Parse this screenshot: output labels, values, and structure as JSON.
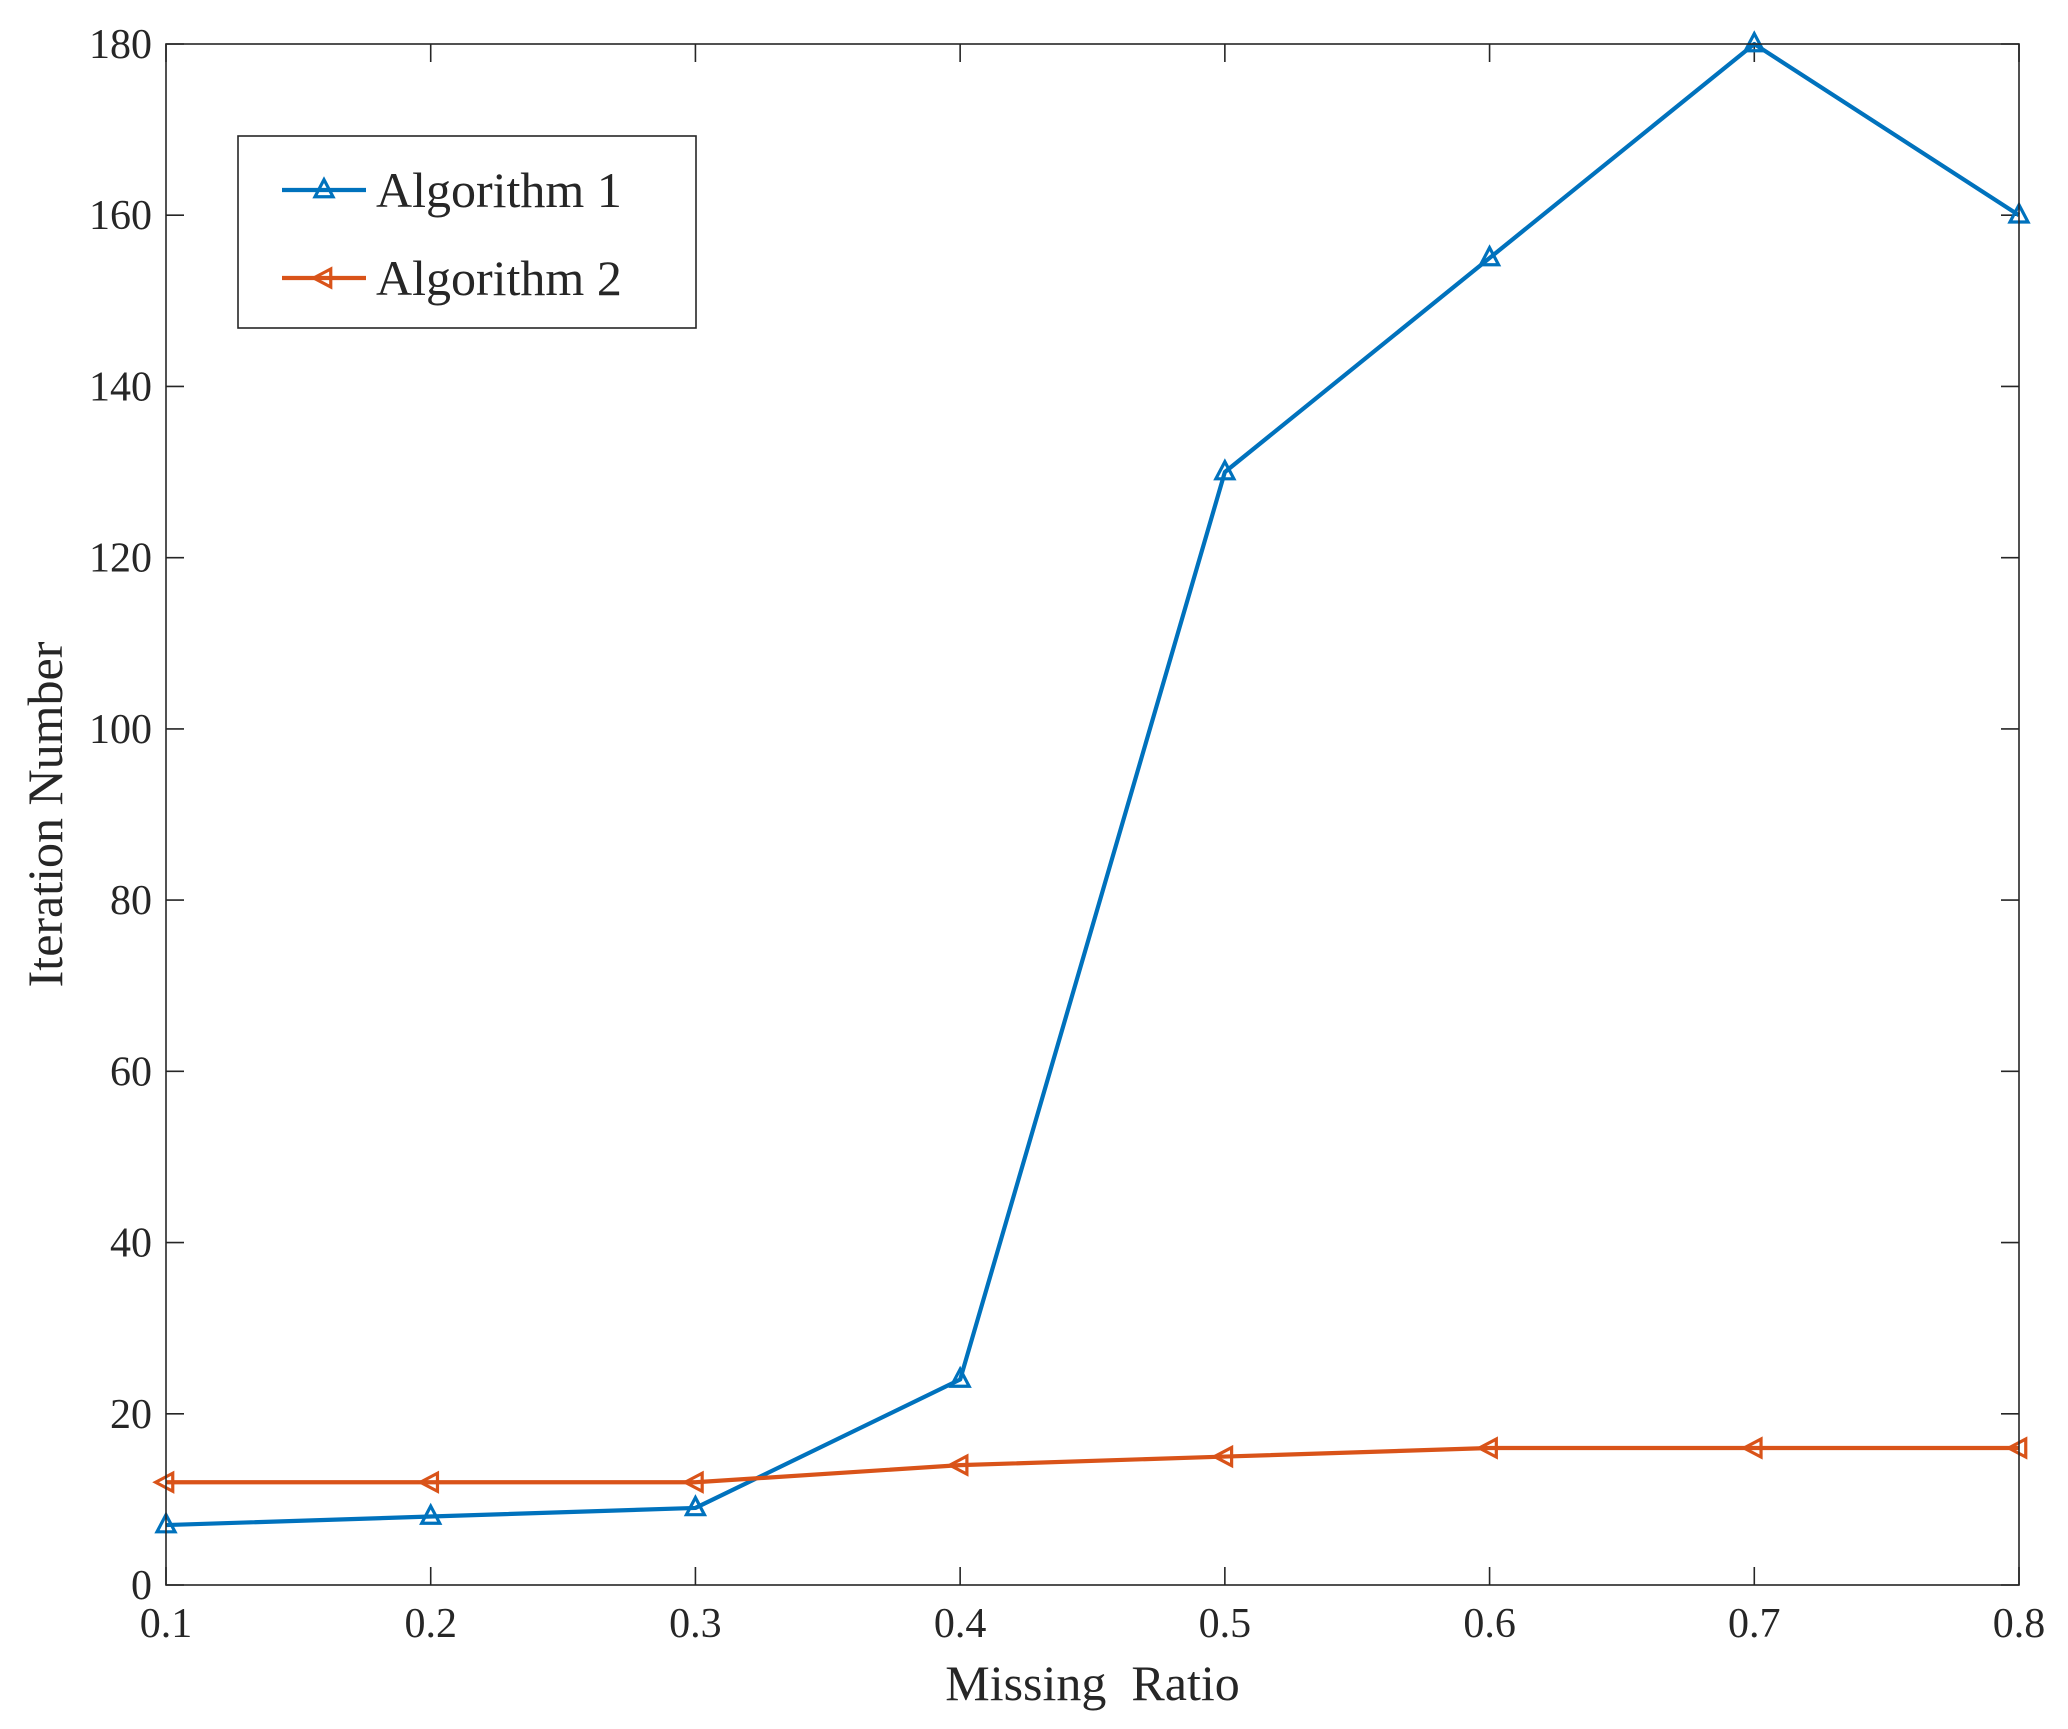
{
  "chart_data": {
    "type": "line",
    "title": "",
    "xlabel": "Missing  Ratio",
    "ylabel": "Iteration Number",
    "x": [
      0.1,
      0.2,
      0.3,
      0.4,
      0.5,
      0.6,
      0.7,
      0.8
    ],
    "xlim": [
      0.1,
      0.8
    ],
    "ylim": [
      0,
      180
    ],
    "xticks": [
      0.1,
      0.2,
      0.3,
      0.4,
      0.5,
      0.6,
      0.7,
      0.8
    ],
    "xtick_labels": [
      "0.1",
      "0.2",
      "0.3",
      "0.4",
      "0.5",
      "0.6",
      "0.7",
      "0.8"
    ],
    "yticks": [
      0,
      20,
      40,
      60,
      80,
      100,
      120,
      140,
      160,
      180
    ],
    "ytick_labels": [
      "0",
      "20",
      "40",
      "60",
      "80",
      "100",
      "120",
      "140",
      "160",
      "180"
    ],
    "grid": false,
    "legend_position": "top-left",
    "series": [
      {
        "name": "Algorithm 1",
        "color": "#0072BD",
        "marker": "triangle-up",
        "values": [
          7,
          8,
          9,
          24,
          130,
          155,
          180,
          160
        ]
      },
      {
        "name": "Algorithm 2",
        "color": "#D95319",
        "marker": "triangle-left",
        "values": [
          12,
          12,
          12,
          14,
          15,
          16,
          16,
          16
        ]
      }
    ]
  }
}
